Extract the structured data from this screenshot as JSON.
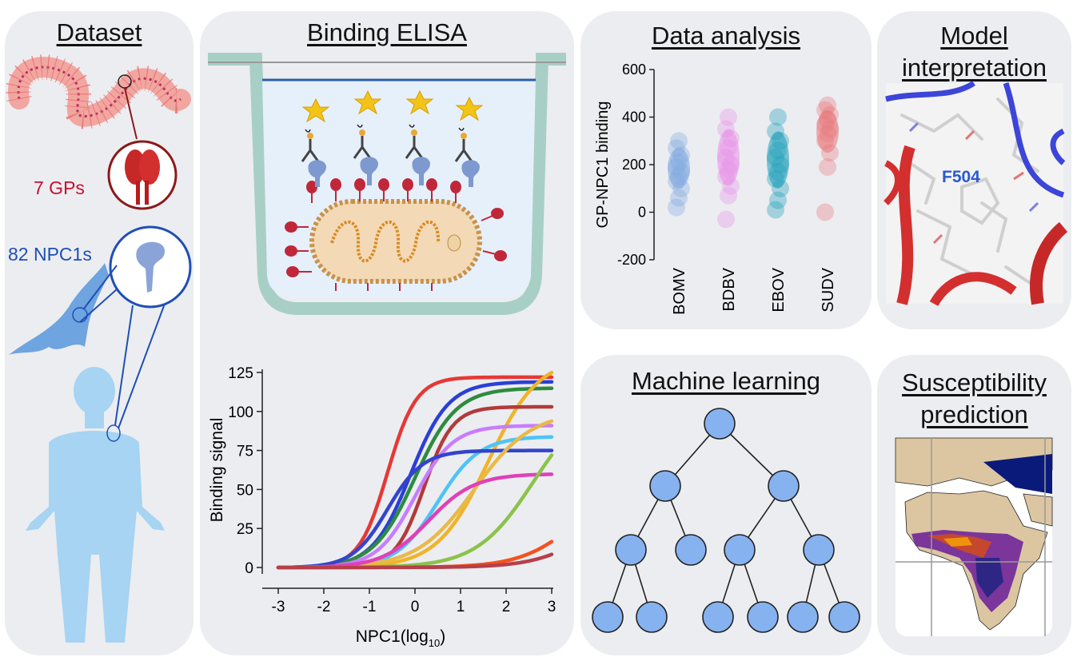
{
  "panels": {
    "dataset": {
      "title": "Dataset",
      "gps_label": "7 GPs",
      "npc1_label": "82 NPC1s"
    },
    "elisa": {
      "title": "Binding ELISA"
    },
    "analysis": {
      "title": "Data analysis"
    },
    "interpretation": {
      "title_line1": "Model",
      "title_line2": "interpretation",
      "residue_label": "F504"
    },
    "ml": {
      "title": "Machine learning"
    },
    "prediction": {
      "title_line1": "Susceptibility",
      "title_line2": "prediction"
    }
  },
  "colors": {
    "gp_red": "#c8102e",
    "npc1_blue": "#1f4fb4",
    "panel_bg": "#ecedf1"
  },
  "chart_data": [
    {
      "type": "line",
      "ylabel": "Binding signal",
      "xlabel_main": "NPC1(log",
      "xlabel_sub": "10",
      "xlabel_close": ")",
      "xlim": [
        -3,
        3
      ],
      "ylim": [
        0,
        125
      ],
      "x_ticks": [
        "-3",
        "-2",
        "-1",
        "0",
        "1",
        "2",
        "3"
      ],
      "y_ticks": [
        "0",
        "25",
        "50",
        "75",
        "100",
        "125"
      ],
      "series": [
        {
          "color": "#e53935",
          "top": 122,
          "ec50": -0.6,
          "hill": 1.6
        },
        {
          "color": "#2b3fd6",
          "top": 119,
          "ec50": -0.1,
          "hill": 1.2
        },
        {
          "color": "#2e8b3e",
          "top": 115,
          "ec50": 0.0,
          "hill": 1.1
        },
        {
          "color": "#f0b429",
          "top": 135,
          "ec50": 1.6,
          "hill": 0.9
        },
        {
          "color": "#b23a3a",
          "top": 103,
          "ec50": 0.2,
          "hill": 1.6
        },
        {
          "color": "#c77dff",
          "top": 91,
          "ec50": 0.0,
          "hill": 1.2
        },
        {
          "color": "#4fc3f7",
          "top": 84,
          "ec50": 0.5,
          "hill": 1.1
        },
        {
          "color": "#3344cc",
          "top": 75,
          "ec50": -0.6,
          "hill": 1.3
        },
        {
          "color": "#e9b949",
          "top": 100,
          "ec50": 1.3,
          "hill": 0.8
        },
        {
          "color": "#e040b8",
          "top": 60,
          "ec50": 0.3,
          "hill": 1.0
        },
        {
          "color": "#8bc34a",
          "top": 110,
          "ec50": 2.6,
          "hill": 0.8
        },
        {
          "color": "#f4511e",
          "top": 60,
          "ec50": 3.6,
          "hill": 0.8
        },
        {
          "color": "#b5404a",
          "top": 50,
          "ec50": 4.0,
          "hill": 0.8
        }
      ]
    },
    {
      "type": "scatter",
      "ylabel": "GP-NPC1 binding",
      "ylim": [
        -200,
        600
      ],
      "y_ticks": [
        "-200",
        "0",
        "200",
        "400",
        "600"
      ],
      "categories": [
        "BOMV",
        "BDBV",
        "EBOV",
        "SUDV"
      ],
      "series": [
        {
          "name": "BOMV",
          "color": "#7fa8e0",
          "values": [
            20,
            60,
            100,
            130,
            150,
            170,
            190,
            210,
            240,
            270,
            300
          ]
        },
        {
          "name": "BDBV",
          "color": "#e890e8",
          "values": [
            -30,
            70,
            110,
            150,
            180,
            200,
            230,
            270,
            310,
            350,
            400
          ]
        },
        {
          "name": "EBOV",
          "color": "#1b9fb8",
          "values": [
            10,
            50,
            100,
            140,
            170,
            200,
            230,
            260,
            300,
            340,
            400
          ]
        },
        {
          "name": "SUDV",
          "color": "#e8787a",
          "values": [
            0,
            190,
            250,
            300,
            330,
            350,
            370,
            390,
            410,
            430,
            450
          ]
        }
      ]
    }
  ]
}
